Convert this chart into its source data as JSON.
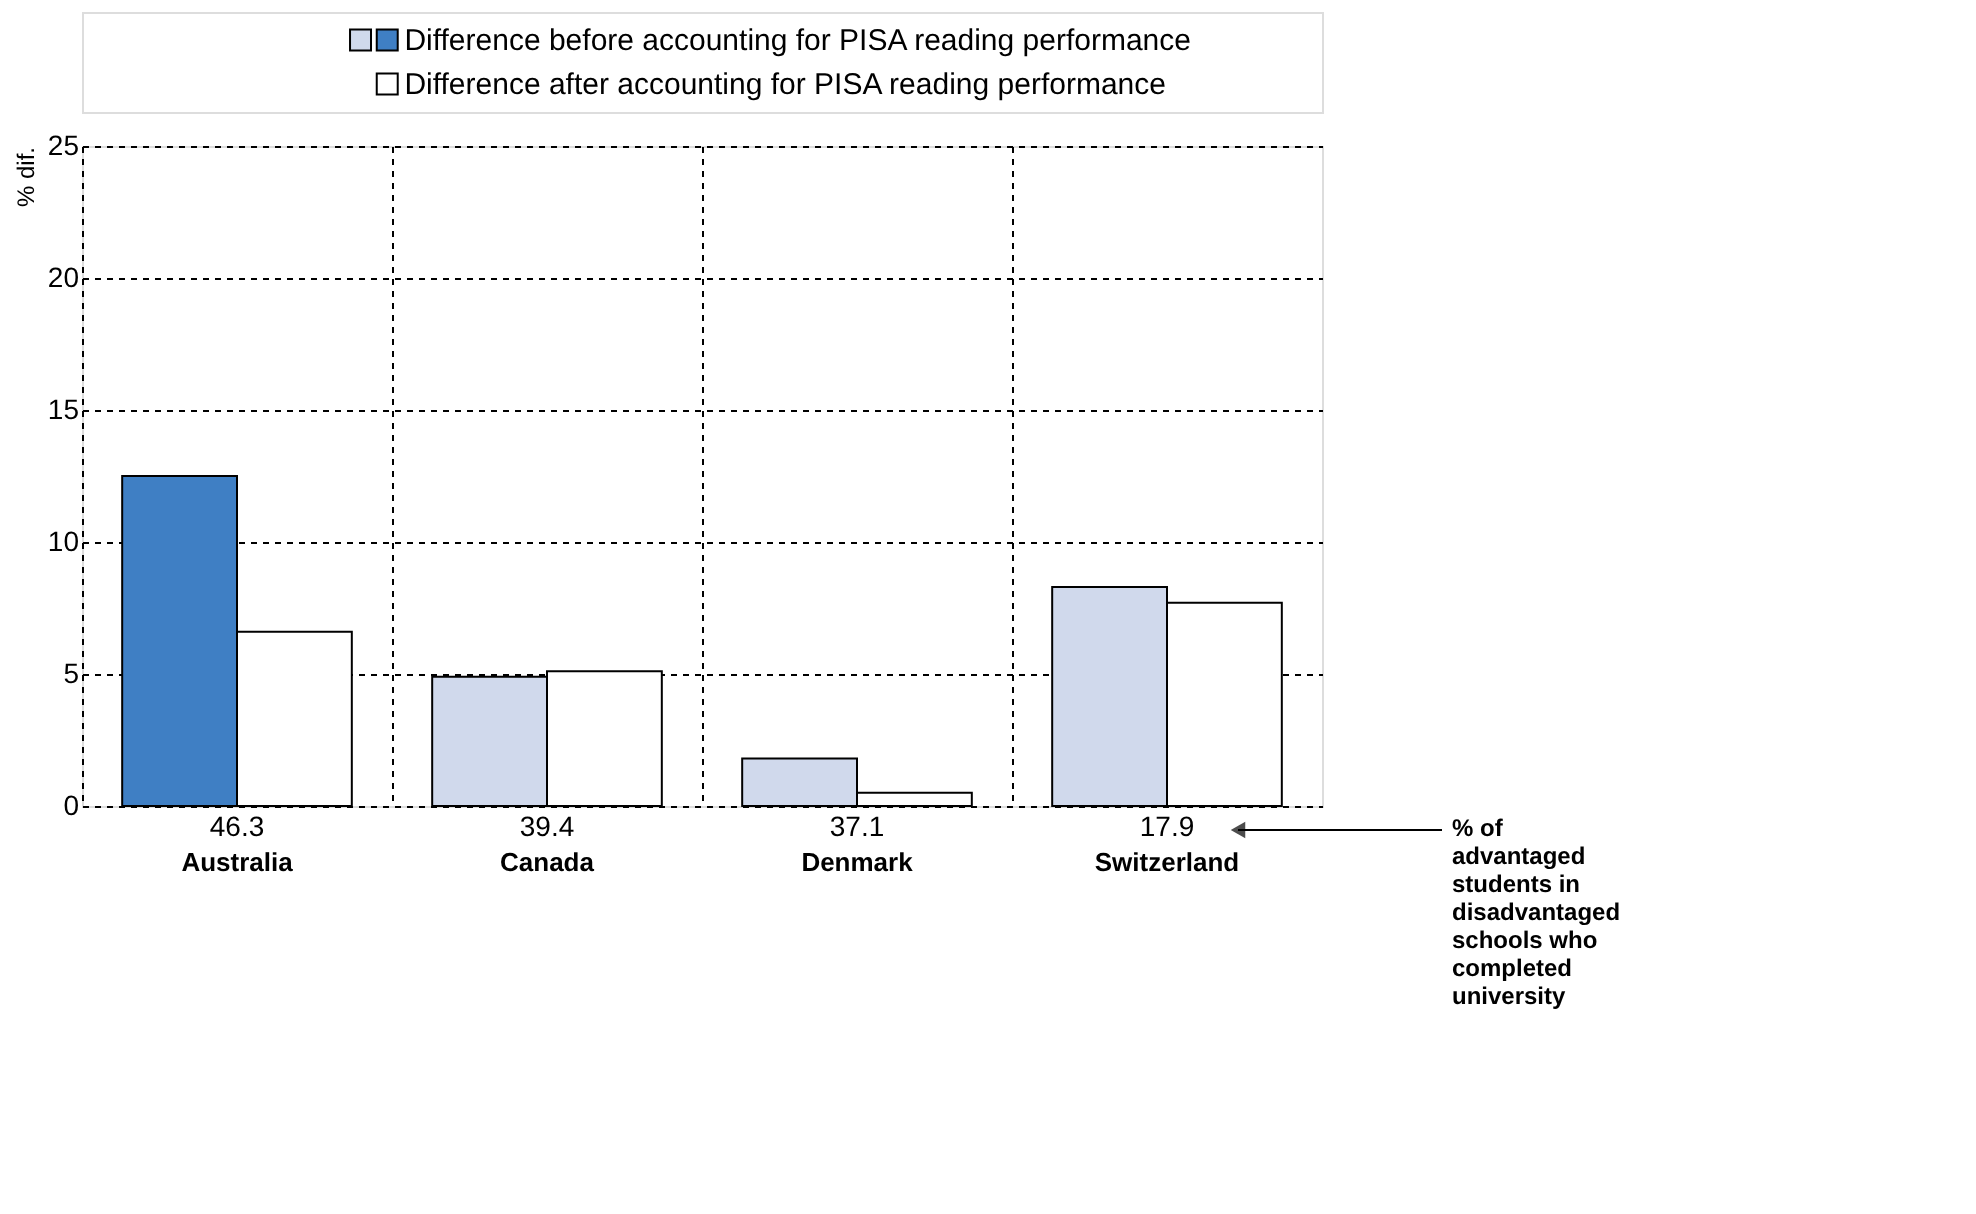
{
  "chart_data": {
    "type": "bar",
    "ylabel": "% dif.",
    "categories": [
      "Australia",
      "Canada",
      "Denmark",
      "Switzerland"
    ],
    "series": [
      {
        "name": "Difference before accounting for PISA reading performance",
        "colors": [
          "#3f7fc4",
          "#d0d9ec",
          "#d0d9ec",
          "#d0d9ec"
        ],
        "values": [
          12.5,
          4.9,
          1.8,
          8.3
        ]
      },
      {
        "name": "Difference after accounting for PISA reading performance",
        "color": "#ffffff",
        "values": [
          6.6,
          5.1,
          0.5,
          7.7
        ]
      }
    ],
    "ylim": [
      0,
      25
    ],
    "yticks": [
      0,
      5,
      10,
      15,
      20,
      25
    ],
    "grid": true,
    "legend": "top",
    "annotations": [
      "46.3",
      "39.4",
      "37.1",
      "17.9",
      "% of advantaged students in disadvantaged schools who completed university"
    ]
  }
}
